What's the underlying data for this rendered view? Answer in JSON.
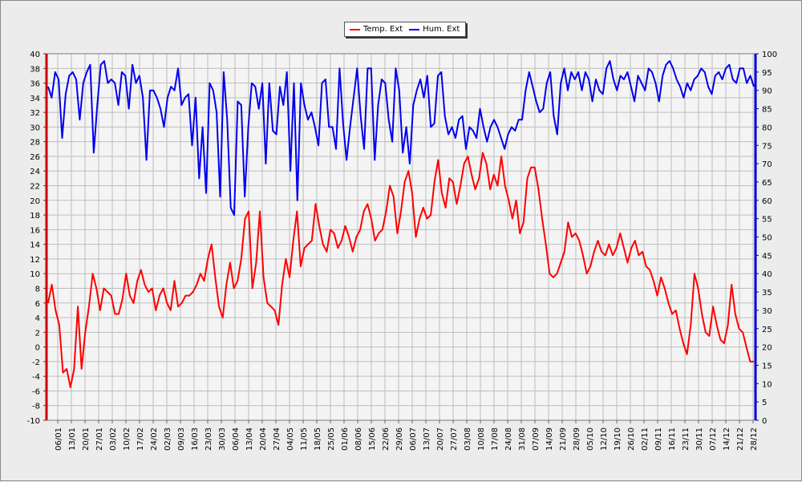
{
  "chart_data": {
    "type": "line",
    "legend": [
      "Temp. Ext",
      "Hum. Ext"
    ],
    "legend_position": "top-center",
    "grid": true,
    "y_left": {
      "range": [
        -10,
        40
      ],
      "ticks": [
        "-10",
        "-8",
        "-6",
        "-4",
        "-2",
        "0",
        "2",
        "4",
        "6",
        "8",
        "10",
        "12",
        "14",
        "16",
        "18",
        "20",
        "22",
        "24",
        "26",
        "28",
        "30",
        "32",
        "34",
        "36",
        "38",
        "40"
      ],
      "color": "#cc0000"
    },
    "y_right": {
      "range": [
        0,
        100
      ],
      "ticks": [
        "0",
        "5",
        "10",
        "15",
        "20",
        "25",
        "30",
        "35",
        "40",
        "45",
        "50",
        "55",
        "60",
        "65",
        "70",
        "75",
        "80",
        "85",
        "90",
        "95",
        "100"
      ],
      "color": "#0000cc"
    },
    "x_ticks": [
      "06/01",
      "13/01",
      "20/01",
      "27/01",
      "03/02",
      "10/02",
      "17/02",
      "24/02",
      "02/03",
      "09/03",
      "16/03",
      "23/03",
      "30/03",
      "06/04",
      "13/04",
      "20/04",
      "27/04",
      "04/05",
      "11/05",
      "18/05",
      "25/05",
      "01/06",
      "08/06",
      "15/06",
      "22/06",
      "29/06",
      "06/07",
      "13/07",
      "20/07",
      "27/07",
      "03/08",
      "10/08",
      "17/08",
      "24/08",
      "31/08",
      "07/09",
      "14/09",
      "21/09",
      "28/09",
      "05/10",
      "12/10",
      "19/10",
      "26/10",
      "02/11",
      "09/11",
      "16/11",
      "23/11",
      "30/11",
      "07/12",
      "14/12",
      "21/12",
      "28/12"
    ],
    "series": [
      {
        "name": "Temp. Ext",
        "axis": "left",
        "color": "#ff0000",
        "values": [
          6.0,
          8.5,
          5.0,
          3.0,
          -3.5,
          -3.0,
          -5.5,
          -3.0,
          5.5,
          -3.0,
          2.0,
          5.5,
          10.0,
          8.0,
          5.0,
          8.0,
          7.5,
          7.0,
          4.5,
          4.5,
          6.5,
          10.0,
          7.0,
          6.0,
          9.0,
          10.5,
          8.5,
          7.5,
          8.0,
          5.0,
          7.0,
          8.0,
          6.0,
          5.0,
          9.0,
          5.5,
          6.0,
          7.0,
          7.0,
          7.5,
          8.5,
          10.0,
          9.0,
          12.0,
          14.0,
          9.5,
          5.5,
          4.0,
          8.5,
          11.5,
          8.0,
          9.0,
          12.0,
          17.5,
          18.5,
          8.0,
          11.5,
          18.5,
          9.5,
          6.0,
          5.5,
          5.0,
          3.0,
          8.5,
          12.0,
          9.5,
          14.5,
          18.5,
          11.0,
          13.5,
          14.0,
          14.5,
          19.5,
          16.5,
          14.0,
          13.0,
          16.0,
          15.5,
          13.5,
          14.5,
          16.5,
          15.0,
          13.0,
          15.0,
          16.0,
          18.5,
          19.5,
          17.5,
          14.5,
          15.5,
          16.0,
          18.5,
          22.0,
          20.5,
          15.5,
          18.5,
          22.5,
          24.0,
          21.0,
          15.0,
          17.5,
          19.0,
          17.5,
          18.0,
          22.5,
          25.5,
          21.0,
          19.0,
          23.0,
          22.5,
          19.5,
          22.0,
          25.0,
          26.0,
          23.5,
          21.5,
          23.0,
          26.5,
          25.0,
          21.5,
          23.5,
          22.0,
          26.0,
          22.0,
          20.0,
          17.5,
          20.0,
          15.5,
          17.0,
          23.0,
          24.5,
          24.5,
          21.5,
          17.5,
          14.0,
          10.0,
          9.5,
          10.0,
          11.5,
          13.0,
          17.0,
          15.0,
          15.5,
          14.5,
          12.5,
          10.0,
          11.0,
          13.0,
          14.5,
          13.0,
          12.5,
          14.0,
          12.5,
          13.5,
          15.5,
          13.5,
          11.5,
          13.5,
          14.5,
          12.5,
          13.0,
          11.0,
          10.5,
          9.0,
          7.0,
          9.5,
          8.0,
          6.0,
          4.5,
          5.0,
          2.5,
          0.5,
          -1.0,
          3.0,
          10.0,
          8.0,
          4.5,
          2.0,
          1.5,
          5.5,
          3.0,
          1.0,
          0.5,
          3.0,
          8.5,
          4.5,
          2.5,
          2.0,
          0.0,
          -2.0,
          -2.0
        ],
        "label": "Temp. Ext"
      },
      {
        "name": "Hum. Ext",
        "axis": "right",
        "color": "#0000ee",
        "values": [
          91,
          88,
          95,
          93,
          77,
          89,
          94,
          95,
          93,
          82,
          92,
          95,
          97,
          73,
          86,
          97,
          98,
          92,
          93,
          92,
          86,
          95,
          94,
          85,
          97,
          92,
          94,
          88,
          71,
          90,
          90,
          88,
          85,
          80,
          88,
          91,
          90,
          96,
          86,
          88,
          89,
          75,
          88,
          66,
          80,
          62,
          92,
          90,
          84,
          61,
          95,
          82,
          58,
          56,
          87,
          86,
          61,
          80,
          92,
          91,
          85,
          92,
          70,
          92,
          79,
          78,
          91,
          86,
          95,
          68,
          92,
          60,
          92,
          86,
          82,
          84,
          80,
          75,
          92,
          93,
          80,
          80,
          74,
          96,
          81,
          71,
          80,
          88,
          96,
          83,
          74,
          96,
          96,
          71,
          86,
          93,
          92,
          82,
          76,
          96,
          90,
          73,
          80,
          70,
          86,
          90,
          93,
          88,
          94,
          80,
          81,
          94,
          95,
          83,
          78,
          80,
          77,
          82,
          83,
          74,
          80,
          79,
          77,
          85,
          80,
          76,
          80,
          82,
          80,
          77,
          74,
          78,
          80,
          79,
          82,
          82,
          90,
          95,
          91,
          87,
          84,
          85,
          92,
          95,
          83,
          78,
          92,
          96,
          90,
          95,
          93,
          95,
          90,
          95,
          93,
          87,
          93,
          90,
          89,
          96,
          98,
          93,
          90,
          94,
          93,
          95,
          91,
          87,
          94,
          92,
          90,
          96,
          95,
          92,
          87,
          94,
          97,
          98,
          96,
          93,
          91,
          88,
          92,
          90,
          93,
          94,
          96,
          95,
          91,
          89,
          94,
          95,
          93,
          96,
          97,
          93,
          92,
          96,
          96,
          92,
          94,
          91
        ],
        "label": "Hum. Ext"
      }
    ]
  },
  "legend_items": [
    {
      "label": "Temp. Ext",
      "color": "#ff0000"
    },
    {
      "label": "Hum. Ext",
      "color": "#0000ee"
    }
  ]
}
